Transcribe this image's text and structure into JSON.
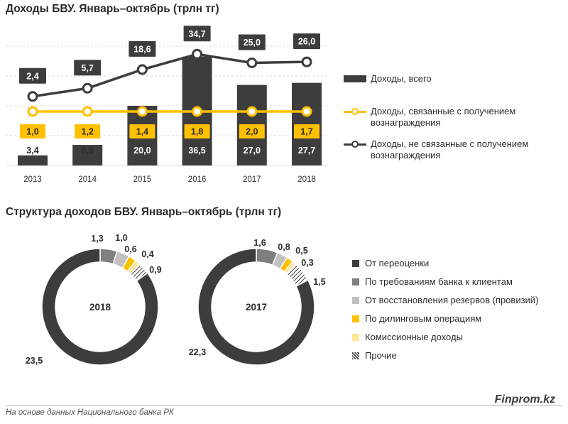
{
  "title_top": "Доходы БВУ. Январь–октябрь (трлн тг)",
  "title_bottom": "Структура доходов БВУ. Январь–октябрь (трлн тг)",
  "colors": {
    "dark": "#3d3d3d",
    "gray": "#7f7f7f",
    "light_gray": "#c0c0c0",
    "yellow": "#ffc000",
    "light_yellow": "#ffe699",
    "grid": "#d9d9d9"
  },
  "legend_top": [
    {
      "key": "total",
      "label": "Доходы, всего"
    },
    {
      "key": "interest",
      "label": "Доходы, связанные с получением вознаграждения"
    },
    {
      "key": "noninterest",
      "label": "Доходы, не связанные с получением вознаграждения"
    }
  ],
  "legend_bottom": [
    {
      "label": "От переоценки"
    },
    {
      "label": "По требованиям банка к клиентам"
    },
    {
      "label": "От восстановления резервов (провизий)"
    },
    {
      "label": "По дилинговым операциям"
    },
    {
      "label": "Комиссионные доходы"
    },
    {
      "label": "Прочие"
    }
  ],
  "chart_data": [
    {
      "type": "bar",
      "title": "Доходы БВУ. Январь–октябрь (трлн тг)",
      "categories": [
        "2013",
        "2014",
        "2015",
        "2016",
        "2017",
        "2018"
      ],
      "series": [
        {
          "name": "Доходы, всего",
          "kind": "bar",
          "values": [
            3.4,
            6.9,
            20.0,
            36.5,
            27.0,
            27.7
          ],
          "labels": [
            "3,4",
            "6,9",
            "20,0",
            "36,5",
            "27,0",
            "27,7"
          ]
        },
        {
          "name": "Доходы, связанные с получением вознаграждения",
          "kind": "line",
          "values": [
            1.0,
            1.2,
            1.4,
            1.8,
            2.0,
            1.7
          ],
          "labels": [
            "1,0",
            "1,2",
            "1,4",
            "1,8",
            "2,0",
            "1,7"
          ]
        },
        {
          "name": "Доходы, не связанные с получением вознаграждения",
          "kind": "line",
          "values": [
            2.4,
            5.7,
            18.6,
            34.7,
            25.0,
            26.0
          ],
          "labels": [
            "2,4",
            "5,7",
            "18,6",
            "34,7",
            "25,0",
            "26,0"
          ]
        }
      ]
    },
    {
      "type": "pie",
      "title": "2018",
      "categories": [
        "От переоценки",
        "По требованиям банка к клиентам",
        "От восстановления резервов (провизий)",
        "По дилинговым операциям",
        "Комиссионные доходы",
        "Прочие"
      ],
      "values": [
        23.5,
        1.3,
        1.0,
        0.6,
        0.4,
        0.9
      ],
      "labels": [
        "23,5",
        "1,3",
        "1,0",
        "0,6",
        "0,4",
        "0,9"
      ]
    },
    {
      "type": "pie",
      "title": "2017",
      "categories": [
        "От переоценки",
        "По требованиям банка к клиентам",
        "От восстановления резервов (провизий)",
        "По дилинговым операциям",
        "Комиссионные доходы",
        "Прочие"
      ],
      "values": [
        22.3,
        1.6,
        0.8,
        0.5,
        0.3,
        1.5
      ],
      "labels": [
        "22,3",
        "1,6",
        "0,8",
        "0,5",
        "0,3",
        "1,5"
      ]
    }
  ],
  "footer": "На основе данных Национального  банка РК",
  "brand": "Finprom.kz"
}
